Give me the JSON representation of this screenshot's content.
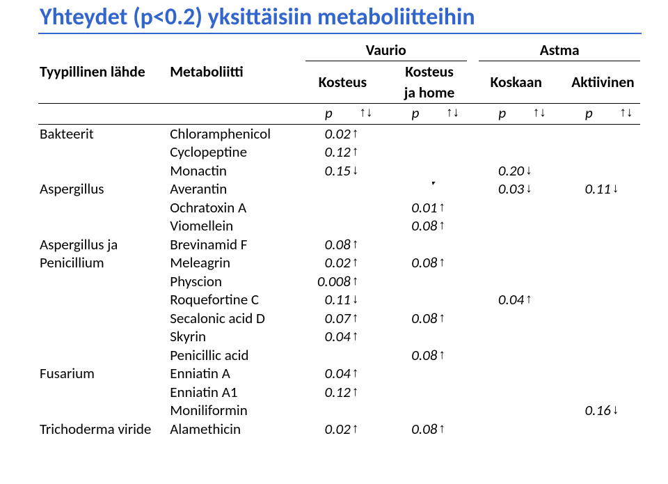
{
  "title": "Yhteydet (p<0.2) yksittäisiin metaboliitteihin",
  "headers": {
    "source": "Tyypillinen lähde",
    "metabolite": "Metaboliitti",
    "vaurio": "Vaurio",
    "astma": "Astma",
    "kosteus": "Kosteus",
    "kosteus_ja_home_l1": "Kosteus",
    "kosteus_ja_home_l2": "ja home",
    "koskaan": "Koskaan",
    "aktiivinen": "Aktiivinen",
    "p": "p",
    "arrow_lbl": "↑↓"
  },
  "rows": [
    {
      "source": "Bakteerit",
      "met": "Chloramphenicol",
      "v1": "0.02",
      "a1": "↑",
      "v2": "",
      "a2": "",
      "v3": "",
      "a3": "",
      "v4": "",
      "a4": ""
    },
    {
      "source": "",
      "met": "Cyclopeptine",
      "v1": "0.12",
      "a1": "↑",
      "v2": "",
      "a2": "",
      "v3": "",
      "a3": "",
      "v4": "",
      "a4": ""
    },
    {
      "source": "",
      "met": "Monactin",
      "v1": "0.15",
      "a1": "↓",
      "v2": "",
      "a2": "",
      "v3": "0.20",
      "a3": "↓",
      "v4": "",
      "a4": ""
    },
    {
      "source": "Aspergillus",
      "met": "Averantin",
      "v1": "",
      "a1": "",
      "v2": "",
      "a2": "",
      "v3": "0.03",
      "a3": "↓",
      "v4": "0.11",
      "a4": "↓",
      "tick": true
    },
    {
      "source": "",
      "met": "Ochratoxin A",
      "v1": "",
      "a1": "",
      "v2": "0.01",
      "a2": "↑",
      "v3": "",
      "a3": "",
      "v4": "",
      "a4": ""
    },
    {
      "source": "",
      "met": "Viomellein",
      "v1": "",
      "a1": "",
      "v2": "0.08",
      "a2": "↑",
      "v3": "",
      "a3": "",
      "v4": "",
      "a4": ""
    },
    {
      "source": "Aspergillus ja",
      "met": "Brevinamid F",
      "v1": "0.08",
      "a1": "↑",
      "v2": "",
      "a2": "",
      "v3": "",
      "a3": "",
      "v4": "",
      "a4": ""
    },
    {
      "source": "Penicillium",
      "met": "Meleagrin",
      "v1": "0.02",
      "a1": "↑",
      "v2": "0.08",
      "a2": "↑",
      "v3": "",
      "a3": "",
      "v4": "",
      "a4": ""
    },
    {
      "source": "",
      "met": "Physcion",
      "v1": "0.008",
      "a1": "↑",
      "v2": "",
      "a2": "",
      "v3": "",
      "a3": "",
      "v4": "",
      "a4": ""
    },
    {
      "source": "",
      "met": "Roquefortine C",
      "v1": "0.11",
      "a1": "↓",
      "v2": "",
      "a2": "",
      "v3": "0.04",
      "a3": "↑",
      "v4": "",
      "a4": ""
    },
    {
      "source": "",
      "met": "Secalonic acid D",
      "v1": "0.07",
      "a1": "↑",
      "v2": "0.08",
      "a2": "↑",
      "v3": "",
      "a3": "",
      "v4": "",
      "a4": ""
    },
    {
      "source": "",
      "met": "Skyrin",
      "v1": "0.04",
      "a1": "↑",
      "v2": "",
      "a2": "",
      "v3": "",
      "a3": "",
      "v4": "",
      "a4": ""
    },
    {
      "source": "",
      "met": "Penicillic acid",
      "v1": "",
      "a1": "",
      "v2": "0.08",
      "a2": "↑",
      "v3": "",
      "a3": "",
      "v4": "",
      "a4": ""
    },
    {
      "source": "Fusarium",
      "met": "Enniatin A",
      "v1": "0.04",
      "a1": "↑",
      "v2": "",
      "a2": "",
      "v3": "",
      "a3": "",
      "v4": "",
      "a4": ""
    },
    {
      "source": "",
      "met": "Enniatin A1",
      "v1": "0.12",
      "a1": "↑",
      "v2": "",
      "a2": "",
      "v3": "",
      "a3": "",
      "v4": "",
      "a4": ""
    },
    {
      "source": "",
      "met": "Moniliformin",
      "v1": "",
      "a1": "",
      "v2": "",
      "a2": "",
      "v3": "",
      "a3": "",
      "v4": "0.16",
      "a4": "↓"
    },
    {
      "source": "Trichoderma viride",
      "met": "Alamethicin",
      "v1": "0.02",
      "a1": "↑",
      "v2": "0.08",
      "a2": "↑",
      "v3": "",
      "a3": "",
      "v4": "",
      "a4": ""
    }
  ]
}
